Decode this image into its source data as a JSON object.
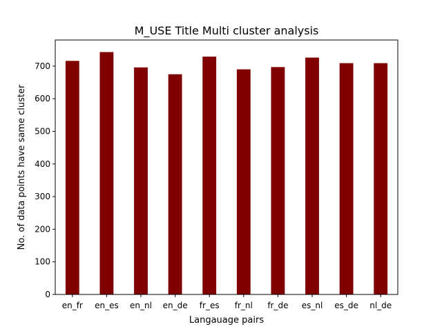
{
  "chart_data": {
    "type": "bar",
    "title": "M_USE Title Multi cluster analysis",
    "xlabel": "Langauage pairs",
    "ylabel": "No. of data points have same cluster",
    "categories": [
      "en_fr",
      "en_es",
      "en_nl",
      "en_de",
      "fr_es",
      "fr_nl",
      "fr_de",
      "es_nl",
      "es_de",
      "nl_de"
    ],
    "values": [
      716,
      743,
      696,
      675,
      729,
      690,
      697,
      726,
      709,
      709
    ],
    "ylim": [
      0,
      780
    ],
    "yticks": [
      0,
      100,
      200,
      300,
      400,
      500,
      600,
      700
    ],
    "bar_color": "#800000",
    "grid": false,
    "legend": false
  }
}
